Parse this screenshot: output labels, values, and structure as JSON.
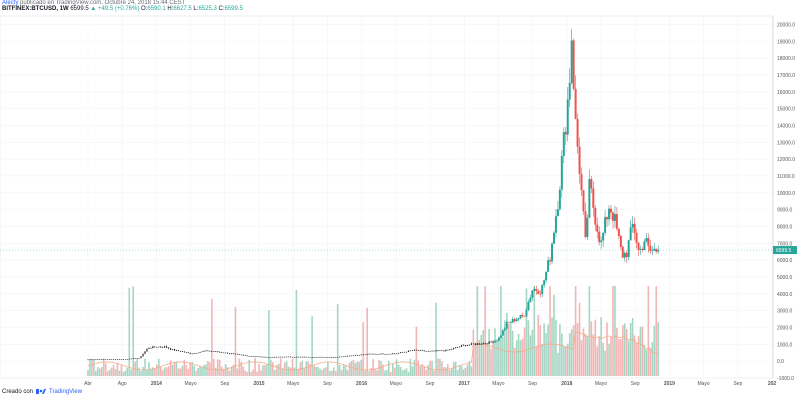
{
  "header": {
    "author": "Alecty",
    "published_line": "publicado en TradingView.com, Octubre 24, 2018 15:44 CEST",
    "symbol": "BITFINEX:BTCUSD, 1W",
    "price": "6599.5",
    "change": "▲ +49.5 (+0.76%)",
    "o_label": "O:",
    "o_value": "6590.1",
    "h_label": "H:",
    "h_value": "6627.5",
    "l_label": "L:",
    "l_value": "6525.3",
    "c_label": "C:",
    "c_value": "6599.5"
  },
  "footer": {
    "created_with": "Creado con",
    "brand": "TradingView"
  },
  "colors": {
    "up": "#26a69a",
    "down": "#ef5350",
    "vol_up": "#a5d6c4",
    "vol_down": "#f4b4b4",
    "ma": "#f7a77e",
    "grid": "#f0f3fa",
    "axis_text": "#555",
    "price_label_bg": "#26a69a"
  },
  "chart_data": {
    "type": "candlestick",
    "title": "",
    "xlabel": "",
    "ylabel": "",
    "ylim": [
      -1000,
      20500
    ],
    "y_ticks": [
      "-1000.0",
      "0.0",
      "1000.0",
      "2000.0",
      "3000.0",
      "4000.0",
      "5000.0",
      "6000.0",
      "7000.0",
      "8000.0",
      "9000.0",
      "10000.0",
      "11000.0",
      "12000.0",
      "13000.0",
      "14000.0",
      "15000.0",
      "16000.0",
      "17000.0",
      "18000.0",
      "19000.0",
      "20000.0"
    ],
    "x_ticks": [
      "Abr",
      "Ago",
      "2014",
      "Mayo",
      "Sep",
      "2015",
      "Mayo",
      "Sep",
      "2016",
      "Mayo",
      "Sep",
      "2017",
      "Mayo",
      "Sep",
      "2018",
      "Mayo",
      "Sep",
      "2019",
      "Mayo",
      "Sep",
      "202"
    ],
    "x_tick_dates": [
      "2013-04",
      "2013-08",
      "2014-01",
      "2014-05",
      "2014-09",
      "2015-01",
      "2015-05",
      "2015-09",
      "2016-01",
      "2016-05",
      "2016-09",
      "2017-01",
      "2017-05",
      "2017-09",
      "2018-01",
      "2018-05",
      "2018-09",
      "2019-01",
      "2019-05",
      "2019-09",
      "2020-01"
    ],
    "last_price_label": "6599.5",
    "last_price": 6599.5,
    "price_path": [
      [
        "2013-04",
        100
      ],
      [
        "2013-06",
        110
      ],
      [
        "2013-08",
        110
      ],
      [
        "2013-10",
        180
      ],
      [
        "2013-11",
        800
      ],
      [
        "2013-12",
        850
      ],
      [
        "2014-01",
        850
      ],
      [
        "2014-02",
        650
      ],
      [
        "2014-03",
        580
      ],
      [
        "2014-04",
        450
      ],
      [
        "2014-06",
        620
      ],
      [
        "2014-08",
        500
      ],
      [
        "2014-10",
        350
      ],
      [
        "2015-01",
        220
      ],
      [
        "2015-03",
        260
      ],
      [
        "2015-06",
        240
      ],
      [
        "2015-09",
        240
      ],
      [
        "2015-11",
        350
      ],
      [
        "2016-01",
        420
      ],
      [
        "2016-04",
        450
      ],
      [
        "2016-06",
        650
      ],
      [
        "2016-08",
        580
      ],
      [
        "2016-10",
        640
      ],
      [
        "2016-12",
        950
      ],
      [
        "2017-01",
        1000
      ],
      [
        "2017-03",
        1100
      ],
      [
        "2017-04",
        1300
      ],
      [
        "2017-05",
        2200
      ],
      [
        "2017-06",
        2500
      ],
      [
        "2017-07",
        2700
      ],
      [
        "2017-08",
        4300
      ],
      [
        "2017-09",
        4200
      ],
      [
        "2017-10",
        6100
      ],
      [
        "2017-11",
        9800
      ],
      [
        "2017-12-10",
        16500
      ],
      [
        "2017-12-17",
        19800
      ],
      [
        "2018-01-01",
        14000
      ],
      [
        "2018-01-15",
        11500
      ],
      [
        "2018-02-05",
        7000
      ],
      [
        "2018-02-20",
        10500
      ],
      [
        "2018-03-10",
        8700
      ],
      [
        "2018-04-01",
        6900
      ],
      [
        "2018-05-01",
        9300
      ],
      [
        "2018-05-20",
        8400
      ],
      [
        "2018-06-15",
        6300
      ],
      [
        "2018-07-01",
        6400
      ],
      [
        "2018-07-25",
        8200
      ],
      [
        "2018-08-15",
        6400
      ],
      [
        "2018-09-05",
        7300
      ],
      [
        "2018-09-20",
        6500
      ],
      [
        "2018-10-10",
        6600
      ],
      [
        "2018-10-24",
        6599.5
      ]
    ],
    "volume_note": "relative volume bars shown beneath price (unlabeled)"
  }
}
